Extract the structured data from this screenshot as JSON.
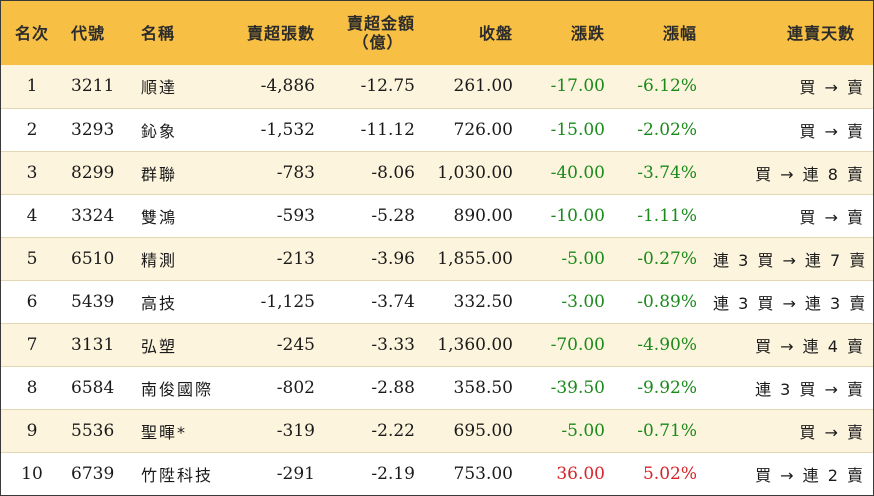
{
  "header": {
    "rank": "名次",
    "code": "代號",
    "name": "名稱",
    "net_sell_shares": "賣超張數",
    "net_sell_amount_line1": "賣超金額",
    "net_sell_amount_line2": "（億）",
    "close": "收盤",
    "change": "漲跌",
    "change_pct": "漲幅",
    "streak": "連賣天數"
  },
  "rows": [
    {
      "rank": "1",
      "code": "3211",
      "name": "順達",
      "shares": "-4,886",
      "amount": "-12.75",
      "close": "261.00",
      "change": "-17.00",
      "pct": "-6.12%",
      "streak": "買 → 賣",
      "dir": "down"
    },
    {
      "rank": "2",
      "code": "3293",
      "name": "鈊象",
      "shares": "-1,532",
      "amount": "-11.12",
      "close": "726.00",
      "change": "-15.00",
      "pct": "-2.02%",
      "streak": "買 → 賣",
      "dir": "down"
    },
    {
      "rank": "3",
      "code": "8299",
      "name": "群聯",
      "shares": "-783",
      "amount": "-8.06",
      "close": "1,030.00",
      "change": "-40.00",
      "pct": "-3.74%",
      "streak": "買 → 連 8 賣",
      "dir": "down"
    },
    {
      "rank": "4",
      "code": "3324",
      "name": "雙鴻",
      "shares": "-593",
      "amount": "-5.28",
      "close": "890.00",
      "change": "-10.00",
      "pct": "-1.11%",
      "streak": "買 → 賣",
      "dir": "down"
    },
    {
      "rank": "5",
      "code": "6510",
      "name": "精測",
      "shares": "-213",
      "amount": "-3.96",
      "close": "1,855.00",
      "change": "-5.00",
      "pct": "-0.27%",
      "streak": "連 3 買 → 連 7 賣",
      "dir": "down"
    },
    {
      "rank": "6",
      "code": "5439",
      "name": "高技",
      "shares": "-1,125",
      "amount": "-3.74",
      "close": "332.50",
      "change": "-3.00",
      "pct": "-0.89%",
      "streak": "連 3 買 → 連 3 賣",
      "dir": "down"
    },
    {
      "rank": "7",
      "code": "3131",
      "name": "弘塑",
      "shares": "-245",
      "amount": "-3.33",
      "close": "1,360.00",
      "change": "-70.00",
      "pct": "-4.90%",
      "streak": "買 → 連 4 賣",
      "dir": "down"
    },
    {
      "rank": "8",
      "code": "6584",
      "name": "南俊國際",
      "shares": "-802",
      "amount": "-2.88",
      "close": "358.50",
      "change": "-39.50",
      "pct": "-9.92%",
      "streak": "連 3 買 → 賣",
      "dir": "down"
    },
    {
      "rank": "9",
      "code": "5536",
      "name": "聖暉*",
      "shares": "-319",
      "amount": "-2.22",
      "close": "695.00",
      "change": "-5.00",
      "pct": "-0.71%",
      "streak": "買 → 賣",
      "dir": "down"
    },
    {
      "rank": "10",
      "code": "6739",
      "name": "竹陞科技",
      "shares": "-291",
      "amount": "-2.19",
      "close": "753.00",
      "change": "36.00",
      "pct": "5.02%",
      "streak": "買 → 連 2 賣",
      "dir": "up"
    }
  ],
  "colors": {
    "header_bg": "#f7c045",
    "odd_row_bg": "#fdf4dd",
    "down": "#1a8a1a",
    "up": "#d8232a"
  }
}
